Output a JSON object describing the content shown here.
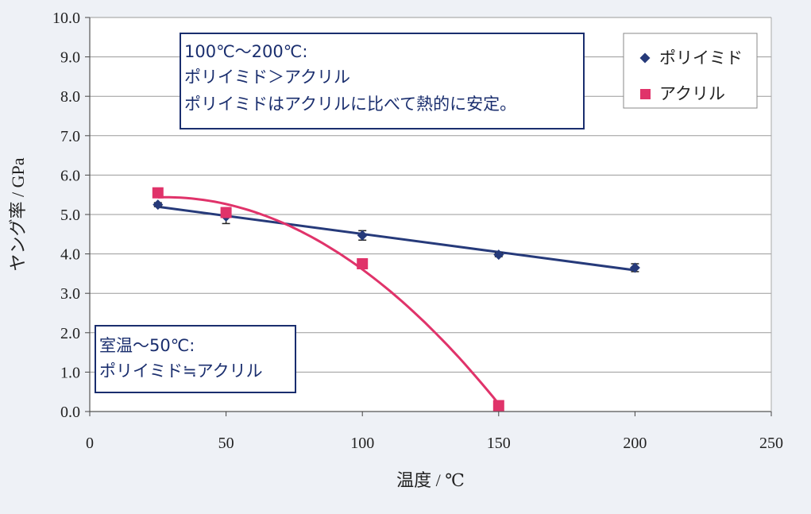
{
  "chart_data": {
    "type": "scatter",
    "xlabel": "温度 / ℃",
    "ylabel": "ヤング率 / GPa",
    "xlim": [
      0,
      250
    ],
    "ylim": [
      0,
      10
    ],
    "x_ticks": [
      "0",
      "50",
      "100",
      "150",
      "200",
      "250"
    ],
    "y_ticks": [
      "0.0",
      "1.0",
      "2.0",
      "3.0",
      "4.0",
      "5.0",
      "6.0",
      "7.0",
      "8.0",
      "9.0",
      "10.0"
    ],
    "grid": "horizontal",
    "legend_position": "top-right",
    "series": [
      {
        "name": "ポリイミド",
        "marker": "diamond",
        "color": "#263a7a",
        "x": [
          25,
          50,
          100,
          150,
          200
        ],
        "y": [
          5.25,
          4.95,
          4.47,
          3.98,
          3.65
        ],
        "error": [
          0.05,
          0.18,
          0.12,
          0.05,
          0.1
        ],
        "fit": "linear"
      },
      {
        "name": "アクリル",
        "marker": "square",
        "color": "#e0336a",
        "x": [
          25,
          50,
          100,
          150
        ],
        "y": [
          5.55,
          5.05,
          3.75,
          0.15
        ],
        "fit": "curve"
      }
    ],
    "annotations": [
      {
        "lines": [
          "100℃～200℃:",
          "ポリイミド＞アクリル",
          "ポリイミドはアクリルに比べて熱的に安定。"
        ],
        "position": "upper-center"
      },
      {
        "lines": [
          "室温～50℃:",
          "ポリイミド≒アクリル"
        ],
        "position": "lower-left"
      }
    ]
  }
}
